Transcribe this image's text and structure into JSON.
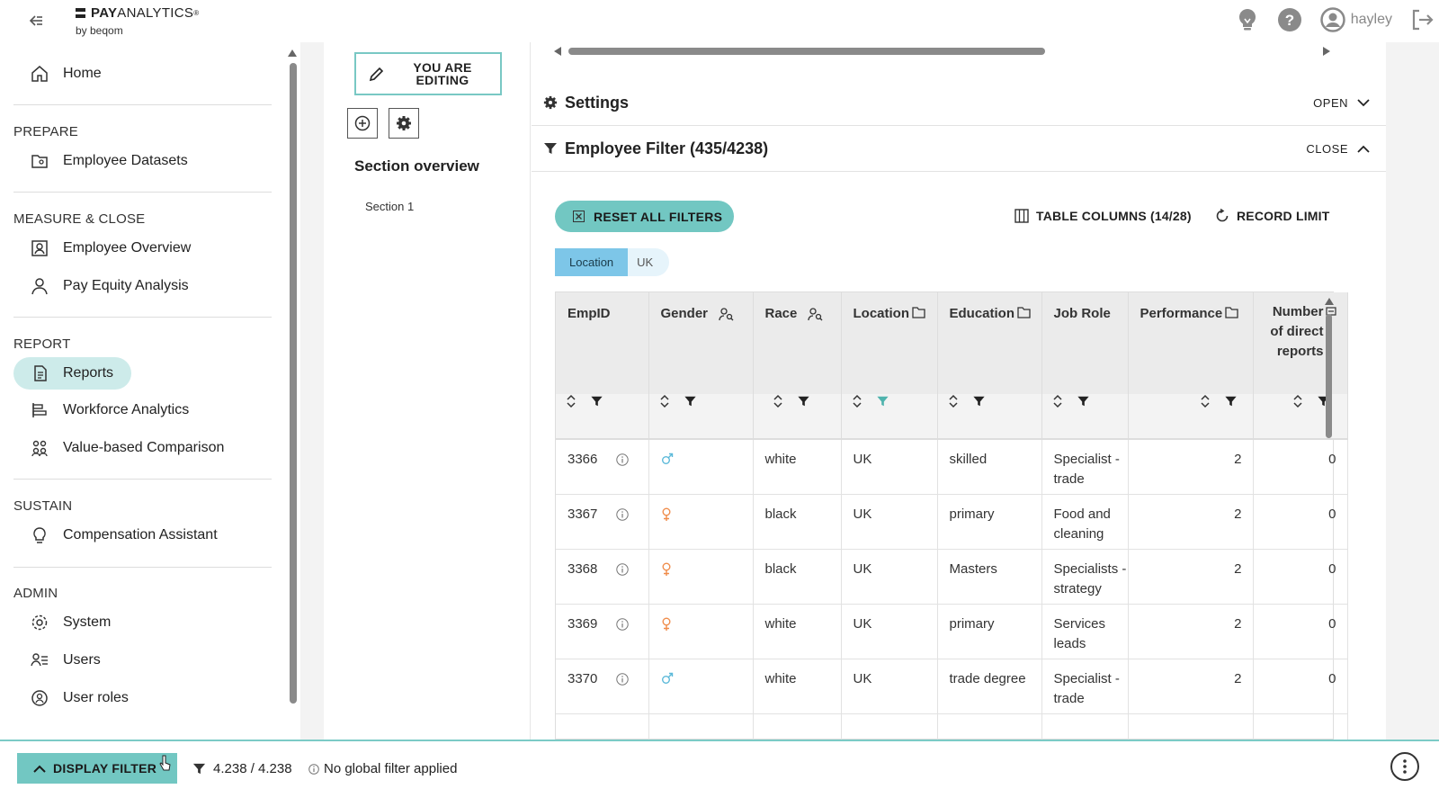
{
  "app": {
    "brand_bold": "PAY",
    "brand_rest": "ANALYTICS",
    "brand_mark": "®",
    "by_line": "by beqom",
    "username": "hayley"
  },
  "sidebar": {
    "home": {
      "label": "Home",
      "icon": "home-icon"
    },
    "sections": [
      {
        "title": "PREPARE",
        "items": [
          {
            "label": "Employee Datasets",
            "icon": "dataset-icon"
          }
        ]
      },
      {
        "title": "MEASURE & CLOSE",
        "items": [
          {
            "label": "Employee Overview",
            "icon": "employee-overview-icon"
          },
          {
            "label": "Pay Equity Analysis",
            "icon": "person-icon"
          }
        ]
      },
      {
        "title": "REPORT",
        "items": [
          {
            "label": "Reports",
            "icon": "report-icon",
            "active": true
          },
          {
            "label": "Workforce Analytics",
            "icon": "workforce-icon"
          },
          {
            "label": "Value-based Comparison",
            "icon": "group-icon"
          }
        ]
      },
      {
        "title": "SUSTAIN",
        "items": [
          {
            "label": "Compensation Assistant",
            "icon": "lightbulb-icon"
          }
        ]
      },
      {
        "title": "ADMIN",
        "items": [
          {
            "label": "System",
            "icon": "gear-icon"
          },
          {
            "label": "Users",
            "icon": "users-icon"
          },
          {
            "label": "User roles",
            "icon": "user-roles-icon"
          }
        ]
      }
    ]
  },
  "section_panel": {
    "editing_line1": "YOU ARE",
    "editing_line2": "EDITING",
    "title": "Section overview",
    "items": [
      "Section 1"
    ]
  },
  "panels": {
    "settings": {
      "title": "Settings",
      "action": "OPEN"
    },
    "filter": {
      "title": "Employee Filter (435/4238)",
      "action": "CLOSE"
    }
  },
  "toolbar": {
    "reset": "RESET ALL FILTERS",
    "columns": "TABLE COLUMNS (14/28)",
    "record_limit": "RECORD LIMIT"
  },
  "active_filter": {
    "key": "Location",
    "value": "UK"
  },
  "table": {
    "columns": [
      {
        "label": "EmpID",
        "icon": ""
      },
      {
        "label": "Gender",
        "icon": "person-search-icon"
      },
      {
        "label": "Race",
        "icon": "person-search-icon"
      },
      {
        "label": "Location",
        "icon": "folder-icon"
      },
      {
        "label": "Education",
        "icon": "folder-icon"
      },
      {
        "label": "Job Role",
        "icon": ""
      },
      {
        "label": "Performance",
        "icon": "folder-icon"
      },
      {
        "label": "Number of direct reports",
        "icon": "tag-icon"
      }
    ],
    "rows": [
      {
        "empid": "3366",
        "gender": "male",
        "race": "white",
        "location": "UK",
        "education": "skilled",
        "job_role": "Specialist - trade",
        "performance": "2",
        "reports": "0"
      },
      {
        "empid": "3367",
        "gender": "female",
        "race": "black",
        "location": "UK",
        "education": "primary",
        "job_role": "Food and cleaning",
        "performance": "2",
        "reports": "0"
      },
      {
        "empid": "3368",
        "gender": "female",
        "race": "black",
        "location": "UK",
        "education": "Masters",
        "job_role": "Specialists - strategy",
        "performance": "2",
        "reports": "0"
      },
      {
        "empid": "3369",
        "gender": "female",
        "race": "white",
        "location": "UK",
        "education": "primary",
        "job_role": "Services leads",
        "performance": "2",
        "reports": "0"
      },
      {
        "empid": "3370",
        "gender": "male",
        "race": "white",
        "location": "UK",
        "education": "trade degree",
        "job_role": "Specialist - trade",
        "performance": "2",
        "reports": "0"
      }
    ]
  },
  "bottom": {
    "display_filter": "DISPLAY FILTER",
    "count": "4.238 / 4.238",
    "note": "No global filter applied"
  },
  "colors": {
    "accent": "#72c7c2",
    "male": "#5bb9d9",
    "female": "#f08c4a",
    "chip": "#7dc6e8"
  }
}
